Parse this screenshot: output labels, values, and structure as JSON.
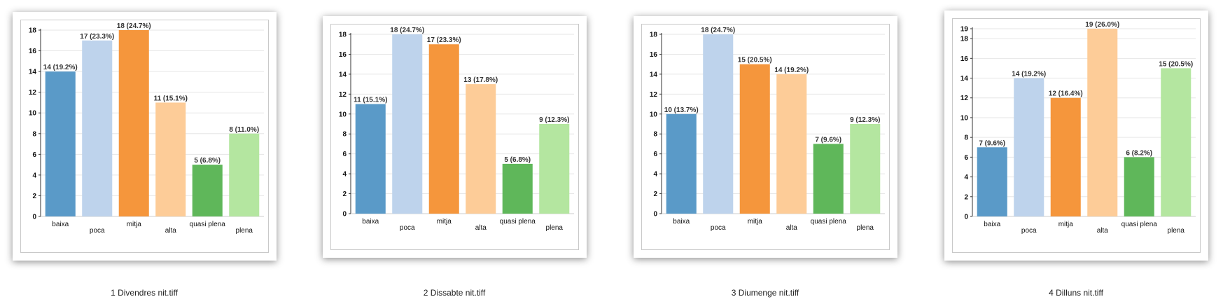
{
  "thumbnails": [
    {
      "caption": "1 Divendres nit.tiff",
      "chart_data": {
        "type": "bar",
        "categories": [
          "baixa",
          "poca",
          "mitja",
          "alta",
          "quasi plena",
          "plena"
        ],
        "values": [
          14,
          17,
          18,
          11,
          5,
          8
        ],
        "data_labels": [
          "14 (19.2%)",
          "17 (23.3%)",
          "18 (24.7%)",
          "11 (15.1%)",
          "5 (6.8%)",
          "8 (11.0%)"
        ],
        "colors": [
          "#5a9ac8",
          "#bed3ec",
          "#f5963c",
          "#fdcc98",
          "#5fb75a",
          "#b4e6a0"
        ],
        "ylim": [
          0,
          18
        ],
        "yticks": [
          0,
          2,
          4,
          6,
          8,
          10,
          12,
          14,
          16,
          18
        ],
        "grid": true,
        "title": "",
        "xlabel": "",
        "ylabel": ""
      }
    },
    {
      "caption": "2 Dissabte nit.tiff",
      "chart_data": {
        "type": "bar",
        "categories": [
          "baixa",
          "poca",
          "mitja",
          "alta",
          "quasi plena",
          "plena"
        ],
        "values": [
          11,
          18,
          17,
          13,
          5,
          9
        ],
        "data_labels": [
          "11 (15.1%)",
          "18 (24.7%)",
          "17 (23.3%)",
          "13 (17.8%)",
          "5 (6.8%)",
          "9 (12.3%)"
        ],
        "colors": [
          "#5a9ac8",
          "#bed3ec",
          "#f5963c",
          "#fdcc98",
          "#5fb75a",
          "#b4e6a0"
        ],
        "ylim": [
          0,
          18
        ],
        "yticks": [
          0,
          2,
          4,
          6,
          8,
          10,
          12,
          14,
          16,
          18
        ],
        "grid": true,
        "title": "",
        "xlabel": "",
        "ylabel": ""
      }
    },
    {
      "caption": "3 Diumenge nit.tiff",
      "chart_data": {
        "type": "bar",
        "categories": [
          "baixa",
          "poca",
          "mitja",
          "alta",
          "quasi plena",
          "plena"
        ],
        "values": [
          10,
          18,
          15,
          14,
          7,
          9
        ],
        "data_labels": [
          "10 (13.7%)",
          "18 (24.7%)",
          "15 (20.5%)",
          "14 (19.2%)",
          "7 (9.6%)",
          "9 (12.3%)"
        ],
        "colors": [
          "#5a9ac8",
          "#bed3ec",
          "#f5963c",
          "#fdcc98",
          "#5fb75a",
          "#b4e6a0"
        ],
        "ylim": [
          0,
          18
        ],
        "yticks": [
          0,
          2,
          4,
          6,
          8,
          10,
          12,
          14,
          16,
          18
        ],
        "grid": true,
        "title": "",
        "xlabel": "",
        "ylabel": ""
      }
    },
    {
      "caption": "4 Dilluns nit.tiff",
      "chart_data": {
        "type": "bar",
        "categories": [
          "baixa",
          "poca",
          "mitja",
          "alta",
          "quasi plena",
          "plena"
        ],
        "values": [
          7,
          14,
          12,
          19,
          6,
          15
        ],
        "data_labels": [
          "7 (9.6%)",
          "14 (19.2%)",
          "12 (16.4%)",
          "19 (26.0%)",
          "6 (8.2%)",
          "15 (20.5%)"
        ],
        "colors": [
          "#5a9ac8",
          "#bed3ec",
          "#f5963c",
          "#fdcc98",
          "#5fb75a",
          "#b4e6a0"
        ],
        "ylim": [
          0,
          19
        ],
        "yticks": [
          0,
          2,
          4,
          6,
          8,
          10,
          12,
          14,
          16,
          18,
          19
        ],
        "grid": true,
        "title": "",
        "xlabel": "",
        "ylabel": ""
      }
    }
  ]
}
